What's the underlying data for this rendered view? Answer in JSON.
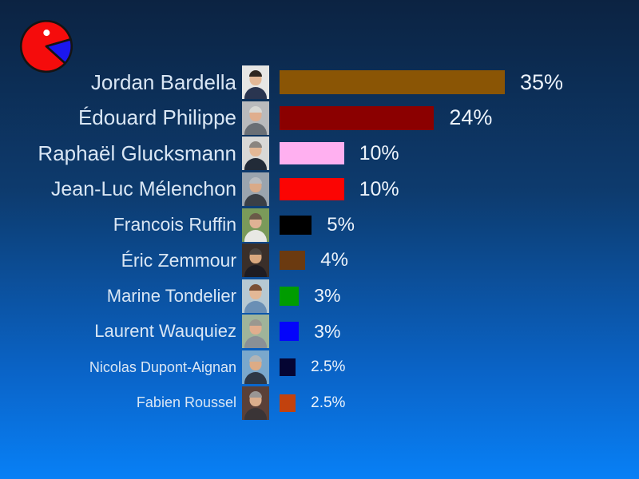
{
  "background": {
    "top_color": "#0c2342",
    "bottom_color": "#0880f6"
  },
  "icon": {
    "name": "pacman-pie-icon",
    "body_color": "#f50c0c",
    "wedge_color": "#1b17ef",
    "eye_color": "#ffffff",
    "outline_color": "#141414"
  },
  "chart_data": {
    "type": "bar",
    "orientation": "horizontal",
    "title": "",
    "unit": "%",
    "categories": [
      "Jordan Bardella",
      "Édouard Philippe",
      "Raphaël Glucksmann",
      "Jean-Luc Mélenchon",
      "Francois Ruffin",
      "Éric Zemmour",
      "Marine Tondelier",
      "Laurent Wauquiez",
      "Nicolas Dupont-Aignan",
      "Fabien Roussel"
    ],
    "values": [
      35,
      24,
      10,
      10,
      5,
      4,
      3,
      3,
      2.5,
      2.5
    ],
    "value_labels": [
      "35%",
      "24%",
      "10%",
      "10%",
      "5%",
      "4%",
      "3%",
      "3%",
      "2.5%",
      "2.5%"
    ],
    "bar_colors": [
      "#8a5505",
      "#8b0000",
      "#ffb0f0",
      "#fb0503",
      "#000000",
      "#6b3a10",
      "#009c00",
      "#0404fa",
      "#050533",
      "#c2420e"
    ],
    "xlim": [
      0,
      35
    ],
    "legend": false,
    "gridlines": false,
    "value_label_position": "outside-end"
  },
  "avatars": [
    {
      "bg": "#e6e6e4",
      "hair": "#2e2620",
      "skin": "#e3b896",
      "clothes": "#2a3550"
    },
    {
      "bg": "#b9babc",
      "hair": "#d8d8d4",
      "skin": "#e0ae8e",
      "clothes": "#6a6f75"
    },
    {
      "bg": "#d8d8d6",
      "hair": "#8a8580",
      "skin": "#e3b896",
      "clothes": "#222b38"
    },
    {
      "bg": "#9aa4ae",
      "hair": "#b8bcc0",
      "skin": "#d9aa88",
      "clothes": "#3a3f46"
    },
    {
      "bg": "#7a9a5a",
      "hair": "#6a5a48",
      "skin": "#dfb294",
      "clothes": "#e8e8e4"
    },
    {
      "bg": "#3a2f2a",
      "hair": "#4a4440",
      "skin": "#d9a87f",
      "clothes": "#1e1c22"
    },
    {
      "bg": "#b6c8d2",
      "hair": "#7a4f35",
      "skin": "#e3b896",
      "clothes": "#6a8fb5"
    },
    {
      "bg": "#9fb49a",
      "hair": "#9a9890",
      "skin": "#e0ae8e",
      "clothes": "#8a9096"
    },
    {
      "bg": "#7aa8cc",
      "hair": "#b0b4b6",
      "skin": "#ddab85",
      "clothes": "#2e3846"
    },
    {
      "bg": "#5a4038",
      "hair": "#9a9694",
      "skin": "#dcae8c",
      "clothes": "#3a3436"
    }
  ]
}
